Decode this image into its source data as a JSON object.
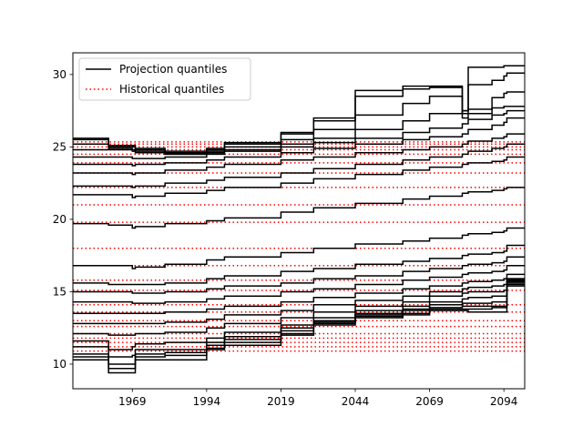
{
  "chart_data": {
    "type": "line",
    "title": "",
    "xlabel": "",
    "ylabel": "",
    "xlim": [
      1949,
      2101
    ],
    "ylim": [
      8.3,
      31.5
    ],
    "xticks": [
      1969,
      1994,
      2019,
      2044,
      2069,
      2094
    ],
    "yticks": [
      10,
      15,
      20,
      25,
      30
    ],
    "grid": false,
    "legend_position": "top-left",
    "legend": [
      {
        "label": "Projection quantiles",
        "color": "#000000",
        "style": "solid"
      },
      {
        "label": "Historical quantiles",
        "color": "#ff0000",
        "style": "dotted"
      }
    ],
    "projection_x": [
      1949,
      1960,
      1961,
      1969,
      1970,
      1980,
      1994,
      2000,
      2019,
      2030,
      2044,
      2060,
      2069,
      2080,
      2082,
      2090,
      2094,
      2095,
      2101
    ],
    "projection_series": [
      [
        10.3,
        10.3,
        9.4,
        9.4,
        10.3,
        10.3,
        11.0,
        11.3,
        12.0,
        12.7,
        13.2,
        13.4,
        13.7,
        13.7,
        13.6,
        13.6,
        13.6,
        15.4,
        15.4
      ],
      [
        10.5,
        10.5,
        9.7,
        9.7,
        10.5,
        10.6,
        11.1,
        11.5,
        12.1,
        12.8,
        13.3,
        13.5,
        13.8,
        13.8,
        13.8,
        13.9,
        13.9,
        15.5,
        15.5
      ],
      [
        10.7,
        10.7,
        10.0,
        10.0,
        10.7,
        10.8,
        11.3,
        11.7,
        12.3,
        12.9,
        13.4,
        13.7,
        13.9,
        14.0,
        14.0,
        14.0,
        14.0,
        15.6,
        15.6
      ],
      [
        11.2,
        11.2,
        10.5,
        10.6,
        11.0,
        11.0,
        11.5,
        11.9,
        12.5,
        13.0,
        13.5,
        13.8,
        14.1,
        14.2,
        14.2,
        14.3,
        14.3,
        15.7,
        15.7
      ],
      [
        11.6,
        11.6,
        11.0,
        11.2,
        11.4,
        11.5,
        11.8,
        12.2,
        12.7,
        13.2,
        13.7,
        14.0,
        14.3,
        14.5,
        14.6,
        14.7,
        14.7,
        15.8,
        15.8
      ],
      [
        12.1,
        12.1,
        12.0,
        12.0,
        12.1,
        12.2,
        12.5,
        12.8,
        13.2,
        13.6,
        14.0,
        14.3,
        14.7,
        14.9,
        15.0,
        15.0,
        15.1,
        15.9,
        15.9
      ],
      [
        12.8,
        12.8,
        12.8,
        12.8,
        12.8,
        12.9,
        13.1,
        13.4,
        13.7,
        14.1,
        14.4,
        14.7,
        15.0,
        15.2,
        15.3,
        15.4,
        15.5,
        15.9,
        15.9
      ],
      [
        13.5,
        13.5,
        13.5,
        13.5,
        13.5,
        13.6,
        13.8,
        14.0,
        14.3,
        14.6,
        14.9,
        15.2,
        15.4,
        15.6,
        15.7,
        15.8,
        15.9,
        16.2,
        16.2
      ],
      [
        14.3,
        14.3,
        14.3,
        14.2,
        14.2,
        14.3,
        14.5,
        14.7,
        15.0,
        15.2,
        15.5,
        15.8,
        16.0,
        16.2,
        16.3,
        16.4,
        16.5,
        16.8,
        16.8
      ],
      [
        15.0,
        15.0,
        15.0,
        14.9,
        14.9,
        15.0,
        15.2,
        15.4,
        15.6,
        15.9,
        16.1,
        16.4,
        16.6,
        16.8,
        16.9,
        17.0,
        17.1,
        17.4,
        17.4
      ],
      [
        15.6,
        15.6,
        15.5,
        15.5,
        15.5,
        15.6,
        15.9,
        16.1,
        16.4,
        16.6,
        16.9,
        17.1,
        17.3,
        17.5,
        17.6,
        17.7,
        17.8,
        18.2,
        18.2
      ],
      [
        16.8,
        16.8,
        16.8,
        16.6,
        16.7,
        16.9,
        17.2,
        17.4,
        17.7,
        18.0,
        18.3,
        18.5,
        18.7,
        18.9,
        19.0,
        19.1,
        19.2,
        19.4,
        19.4
      ],
      [
        19.7,
        19.7,
        19.6,
        19.4,
        19.5,
        19.7,
        19.9,
        20.1,
        20.5,
        20.8,
        21.1,
        21.4,
        21.6,
        21.8,
        21.9,
        22.0,
        22.1,
        22.2,
        22.2
      ],
      [
        21.7,
        21.7,
        21.7,
        21.5,
        21.6,
        21.8,
        22.0,
        22.2,
        22.5,
        22.8,
        23.1,
        23.4,
        23.6,
        23.8,
        23.9,
        24.0,
        24.1,
        24.3,
        24.3
      ],
      [
        22.3,
        22.3,
        22.3,
        22.2,
        22.3,
        22.5,
        22.7,
        22.9,
        23.2,
        23.5,
        23.8,
        24.1,
        24.3,
        24.5,
        24.7,
        24.9,
        25.0,
        25.2,
        25.2
      ],
      [
        23.2,
        23.2,
        23.2,
        23.1,
        23.2,
        23.4,
        23.6,
        23.8,
        24.1,
        24.3,
        24.6,
        24.8,
        25.0,
        25.2,
        25.4,
        25.6,
        25.7,
        25.9,
        25.9
      ],
      [
        23.8,
        23.8,
        23.8,
        23.7,
        23.8,
        23.9,
        24.1,
        24.3,
        24.6,
        24.9,
        25.2,
        25.5,
        25.7,
        25.9,
        26.2,
        26.5,
        26.7,
        27.0,
        27.0
      ],
      [
        24.3,
        24.3,
        24.3,
        24.2,
        24.2,
        24.3,
        24.5,
        24.7,
        25.0,
        25.3,
        25.6,
        26.0,
        26.3,
        26.6,
        26.9,
        27.2,
        27.3,
        27.5,
        27.5
      ],
      [
        24.8,
        24.8,
        24.8,
        24.7,
        24.6,
        24.5,
        24.6,
        24.8,
        25.2,
        25.6,
        26.2,
        26.8,
        27.3,
        27.5,
        27.6,
        27.7,
        27.8,
        27.8,
        27.8
      ],
      [
        25.2,
        25.2,
        24.9,
        24.8,
        24.7,
        24.5,
        24.7,
        25.0,
        25.5,
        26.2,
        27.2,
        28.0,
        28.5,
        27.3,
        27.3,
        28.4,
        28.7,
        28.8,
        28.8
      ],
      [
        25.5,
        25.5,
        25.0,
        25.0,
        24.8,
        24.6,
        24.8,
        25.2,
        25.9,
        26.8,
        28.5,
        29.0,
        29.1,
        27.5,
        29.3,
        29.6,
        29.9,
        30.1,
        30.1
      ],
      [
        25.6,
        25.6,
        25.1,
        25.1,
        24.9,
        24.7,
        24.9,
        25.3,
        26.0,
        27.0,
        28.9,
        29.2,
        29.2,
        27.0,
        30.5,
        30.5,
        30.6,
        30.6,
        30.6
      ]
    ],
    "historical_quantiles": [
      10.9,
      11.2,
      11.5,
      11.8,
      12.1,
      12.6,
      13.0,
      13.6,
      14.1,
      15.1,
      15.8,
      16.8,
      18.0,
      19.8,
      21.0,
      22.2,
      23.2,
      23.9,
      24.5,
      24.8,
      25.0,
      25.2,
      25.35
    ]
  }
}
